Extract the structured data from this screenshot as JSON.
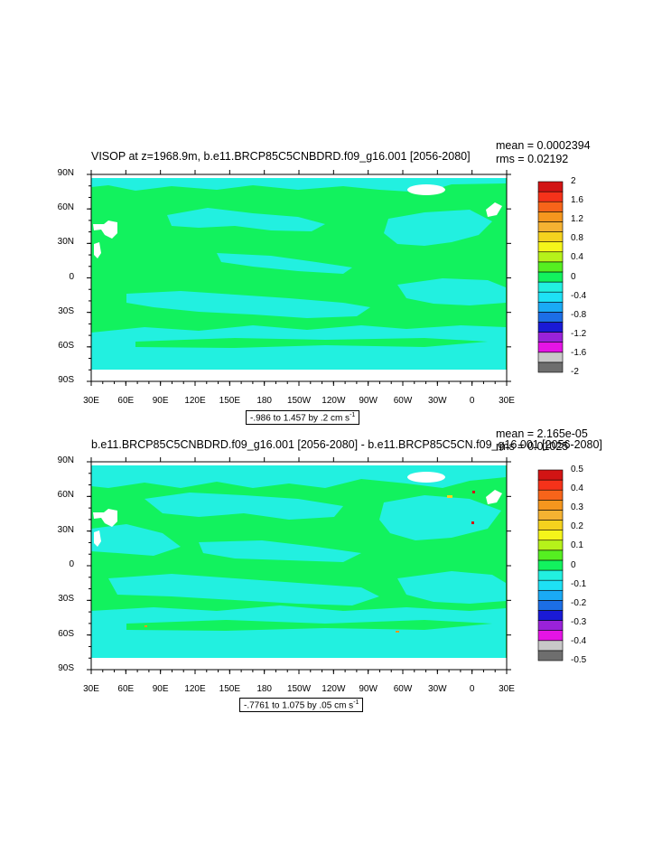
{
  "colors": {
    "land": "#ffffff",
    "green": "#12f25e",
    "cyan": "#22f0e0",
    "axis": "#000000"
  },
  "x_ticks": [
    "30E",
    "60E",
    "90E",
    "120E",
    "150E",
    "180",
    "150W",
    "120W",
    "90W",
    "60W",
    "30W",
    "0",
    "30E"
  ],
  "y_ticks": [
    "90N",
    "60N",
    "30N",
    "0",
    "30S",
    "60S",
    "90S"
  ],
  "colorbar_colors": [
    "#6e6e6e",
    "#c8c8c8",
    "#e514e5",
    "#9a22d9",
    "#1a1ad6",
    "#1c6ee6",
    "#1aaaf5",
    "#1ee1f5",
    "#22f0e0",
    "#12f25e",
    "#55ef21",
    "#b6f21a",
    "#f5f51a",
    "#f5d21e",
    "#f5b232",
    "#f5961e",
    "#f7641a",
    "#f5321a",
    "#d21414"
  ],
  "panels": [
    {
      "title": "VISOP at z=1968.9m, b.e11.BRCP85C5CNBDRD.f09_g16.001 [2056-2080]",
      "mean": "mean = 0.0002394",
      "rms": "rms = 0.02192",
      "range_main": "-.986 to 1.457 by .2 cm s",
      "range_sup": "-1",
      "colorbar_labels": [
        "2",
        "1.6",
        "1.2",
        "0.8",
        "0.4",
        "0",
        "-0.4",
        "-0.8",
        "-1.2",
        "-1.6",
        "-2"
      ]
    },
    {
      "title": "b.e11.BRCP85C5CNBDRD.f09_g16.001 [2056-2080] - b.e11.BRCP85C5CN.f09_g16.001 [2056-2080]",
      "mean": "mean = 2.165e-05",
      "rms": "rms = 0.01025",
      "range_main": "-.7761 to 1.075 by .05 cm s",
      "range_sup": "-1",
      "colorbar_labels": [
        "0.5",
        "0.4",
        "0.3",
        "0.2",
        "0.1",
        "0",
        "-0.1",
        "-0.2",
        "-0.3",
        "-0.4",
        "-0.5"
      ]
    }
  ]
}
